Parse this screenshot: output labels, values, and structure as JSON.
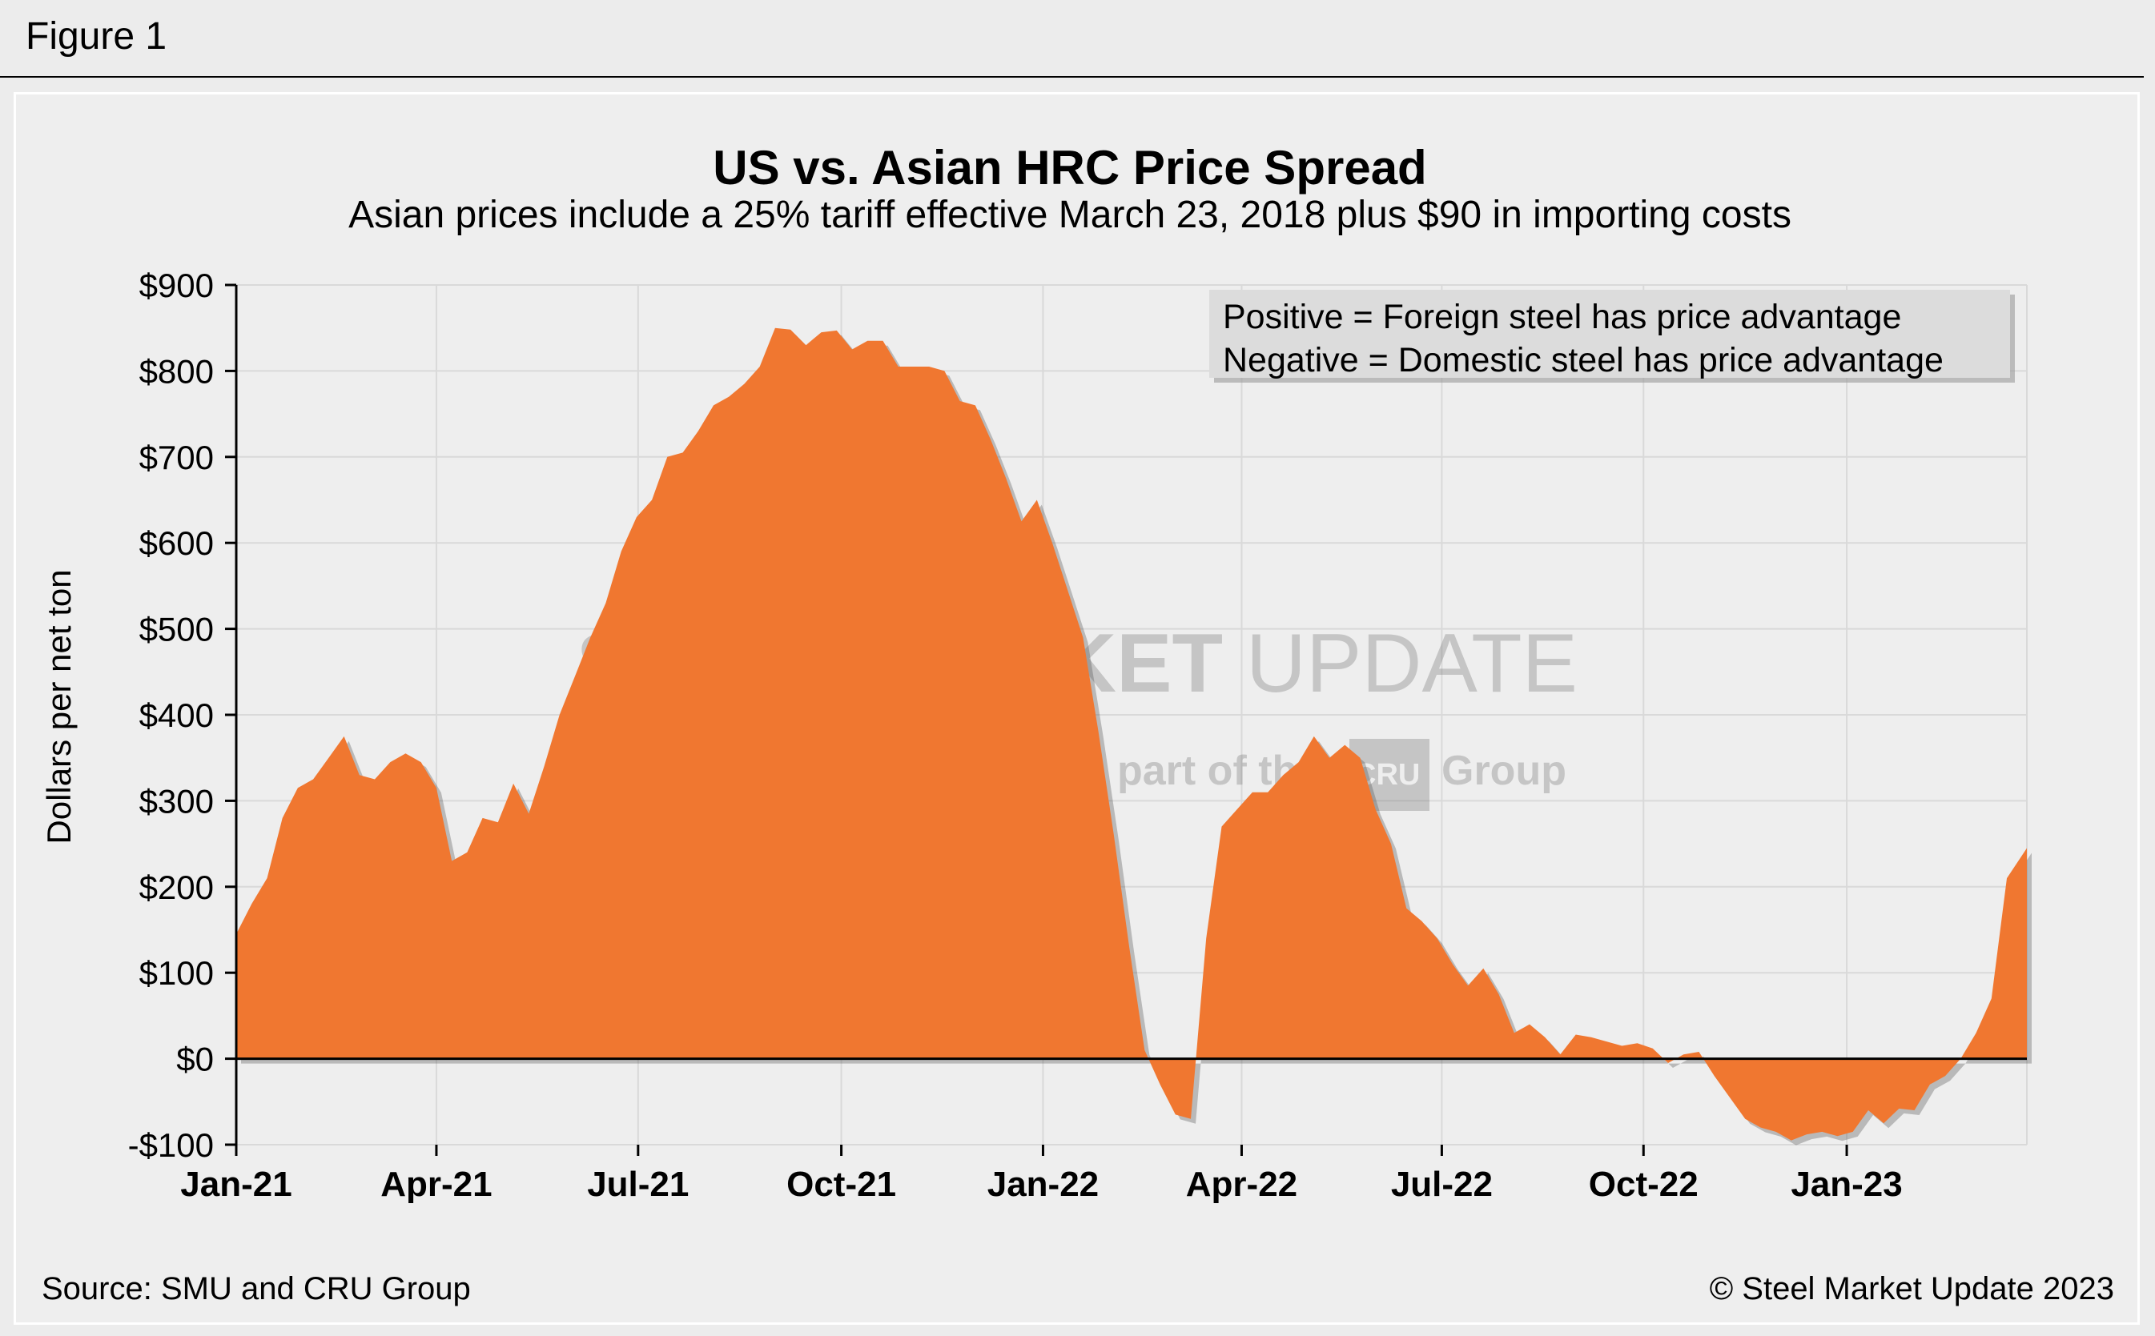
{
  "figure_label": "Figure 1",
  "colors": {
    "area": "#f07730",
    "grid": "#d9d9d9",
    "background": "#eeeeee",
    "axis": "#000000",
    "legend_box": "#dcdcdc",
    "watermark": "#7a7a7a"
  },
  "watermark": {
    "line1_bold": "STEEL MARKET",
    "line1_light": " UPDATE",
    "line2_a": "part of the ",
    "logo": "CRU",
    "line2_b": " Group"
  },
  "legend": {
    "line1": "Positive = Foreign steel has price advantage",
    "line2": "Negative = Domestic steel has price advantage"
  },
  "footer": {
    "source": "Source: SMU and CRU Group",
    "copyright": "© Steel Market Update 2023"
  },
  "chart_data": {
    "type": "area",
    "title": "US vs. Asian HRC Price Spread",
    "subtitle": "Asian prices include a 25% tariff effective March 23, 2018 plus $90 in importing costs",
    "xlabel": "",
    "ylabel": "Dollars per net ton",
    "ylim": [
      -100,
      900
    ],
    "yticks": [
      {
        "value": 900,
        "label": "$900"
      },
      {
        "value": 800,
        "label": "$800"
      },
      {
        "value": 700,
        "label": "$700"
      },
      {
        "value": 600,
        "label": "$600"
      },
      {
        "value": 500,
        "label": "$500"
      },
      {
        "value": 400,
        "label": "$400"
      },
      {
        "value": 300,
        "label": "$300"
      },
      {
        "value": 200,
        "label": "$200"
      },
      {
        "value": 100,
        "label": "$100"
      },
      {
        "value": 0,
        "label": "$0"
      },
      {
        "value": -100,
        "label": "-$100"
      }
    ],
    "xlim_weeks": [
      0,
      116.3
    ],
    "xticks": [
      {
        "week": 0,
        "label": "Jan-21"
      },
      {
        "week": 13,
        "label": "Apr-21"
      },
      {
        "week": 26.1,
        "label": "Jul-21"
      },
      {
        "week": 39.3,
        "label": "Oct-21"
      },
      {
        "week": 52.4,
        "label": "Jan-22"
      },
      {
        "week": 65.3,
        "label": "Apr-22"
      },
      {
        "week": 78.3,
        "label": "Jul-22"
      },
      {
        "week": 91.4,
        "label": "Oct-22"
      },
      {
        "week": 104.6,
        "label": "Jan-23"
      }
    ],
    "series": [
      {
        "name": "US vs. Asian HRC Price Spread",
        "x_weeks": [
          0,
          1,
          2,
          3,
          4,
          5,
          6,
          7,
          8,
          9,
          10,
          11,
          12,
          13,
          14,
          15,
          16,
          17,
          18,
          19,
          20,
          21,
          22,
          23,
          24,
          25,
          26,
          27,
          28,
          29,
          30,
          31,
          32,
          33,
          34,
          35,
          36,
          37,
          38,
          39,
          40,
          41,
          42,
          43,
          44,
          45,
          46,
          47,
          48,
          49,
          50,
          51,
          52,
          53,
          54,
          55,
          56,
          57,
          58,
          59,
          60,
          61,
          62,
          63,
          64,
          65,
          66,
          67,
          68,
          69,
          70,
          71,
          72,
          73,
          74,
          75,
          76,
          77,
          78,
          79,
          80,
          81,
          82,
          83,
          84,
          85,
          86,
          87,
          88,
          89,
          90,
          91,
          92,
          93,
          94,
          95,
          96,
          97,
          98,
          99,
          100,
          101,
          102,
          103,
          104,
          105,
          106,
          107,
          108,
          109,
          110,
          111,
          112,
          113,
          114,
          115,
          116.3
        ],
        "values": [
          145,
          180,
          210,
          280,
          315,
          325,
          350,
          375,
          330,
          325,
          345,
          355,
          345,
          315,
          230,
          240,
          280,
          275,
          320,
          285,
          340,
          400,
          445,
          490,
          530,
          590,
          630,
          650,
          700,
          705,
          730,
          760,
          770,
          785,
          805,
          850,
          848,
          830,
          845,
          847,
          825,
          835,
          835,
          805,
          805,
          805,
          800,
          765,
          760,
          720,
          675,
          625,
          650,
          600,
          545,
          490,
          380,
          260,
          130,
          10,
          -30,
          -65,
          -70,
          140,
          270,
          290,
          310,
          310,
          330,
          345,
          375,
          350,
          365,
          350,
          290,
          250,
          175,
          160,
          140,
          110,
          85,
          105,
          75,
          30,
          40,
          25,
          5,
          28,
          25,
          20,
          15,
          18,
          12,
          -5,
          5,
          8,
          -20,
          -45,
          -70,
          -80,
          -85,
          -95,
          -88,
          -85,
          -90,
          -85,
          -60,
          -75,
          -58,
          -60,
          -30,
          -20,
          0,
          30,
          70,
          210,
          245
        ]
      }
    ]
  }
}
